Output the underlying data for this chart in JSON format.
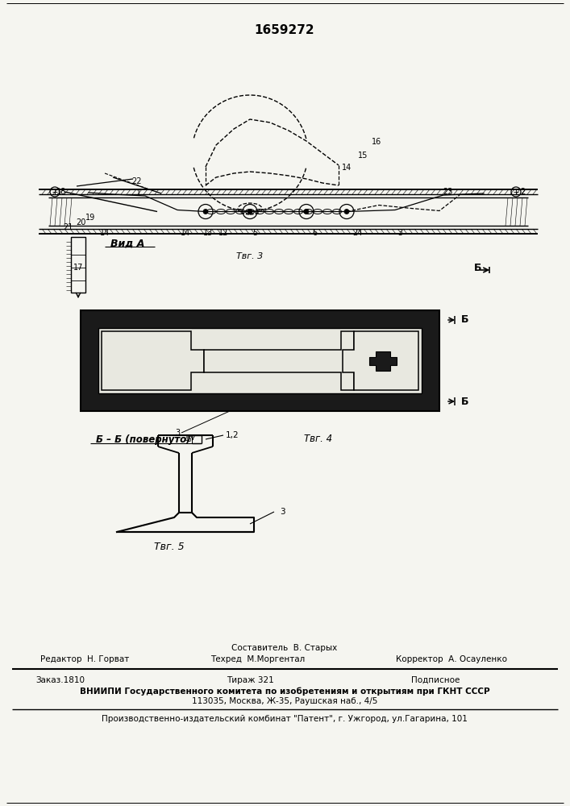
{
  "patent_number": "1659272",
  "bg_color": "#f5f5f0",
  "line_color": "#000000",
  "fig3_label": "Τвг. 3",
  "fig3_view_label": "Вид A",
  "fig4_label": "Τвг. 4",
  "fig5_label": "Τвг. 5",
  "section_label": "Б – Б (повернуто)",
  "editor_line": "Редактор  Н. Горват",
  "composer_line": "Составитель  В. Старых",
  "techred_line": "Техред  М.Моргентал",
  "corrector_line": "Корректор  А. Осауленко",
  "order_line": "Заказ.1810",
  "tirage_line": "Тираж 321",
  "subscr_line": "Подписное",
  "vniip_line1": "ВНИИПИ Государственного комитета по изобретениям и открытиям при ГКНТ СССР",
  "vniip_line2": "113035, Москва, Ж-35, Раушская наб., 4/5",
  "patent_line": "Производственно-издательский комбинат \"Патент\", г. Ужгород, ул.Гагарина, 101"
}
